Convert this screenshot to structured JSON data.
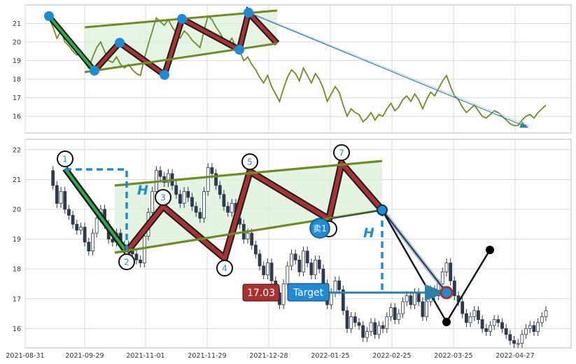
{
  "chart_data": [
    {
      "panel": "top",
      "type": "line",
      "title": "",
      "xlabel": "",
      "ylabel": "",
      "ylim": [
        15.1,
        22.0
      ],
      "yticks": [
        16,
        17,
        18,
        19,
        20,
        21
      ],
      "grid": true,
      "series": [
        {
          "color": "#6b8e23",
          "x": [
            0,
            2,
            4,
            6,
            8,
            10,
            12,
            14,
            16,
            18,
            20,
            22,
            24,
            26,
            28,
            30,
            32,
            34,
            36,
            38,
            40,
            42,
            44,
            46,
            48,
            50,
            52,
            54,
            56,
            58,
            60,
            62,
            64,
            66,
            68,
            70,
            72,
            74,
            76,
            78,
            80,
            82,
            84,
            86,
            88,
            90,
            92,
            94,
            96,
            98,
            100,
            102,
            104,
            106,
            108,
            110,
            112,
            114,
            116,
            118,
            120,
            122,
            124,
            126,
            128,
            130,
            132,
            134,
            136,
            138,
            140,
            142,
            144,
            146,
            148,
            150,
            152,
            154,
            156,
            158,
            160,
            162,
            164,
            166,
            168,
            170,
            172,
            174,
            176,
            178,
            180,
            182,
            184,
            186,
            188,
            190,
            192,
            194,
            196,
            198,
            200,
            202,
            204,
            206,
            208,
            210,
            212,
            214,
            216,
            218,
            220,
            222,
            224,
            226,
            228,
            230,
            232,
            234,
            236,
            238,
            240,
            242,
            244,
            246,
            248,
            250
          ],
          "values": [
            21.3,
            20.8,
            20.2,
            20.6,
            20.0,
            19.8,
            19.5,
            19.3,
            19.4,
            18.9,
            18.6,
            19.2,
            19.7,
            20.0,
            19.5,
            19.0,
            18.9,
            19.2,
            18.8,
            18.6,
            18.8,
            18.5,
            18.3,
            18.2,
            19.1,
            19.9,
            20.6,
            21.3,
            21.1,
            20.9,
            21.2,
            20.8,
            20.5,
            20.2,
            20.6,
            20.4,
            20.1,
            19.9,
            19.7,
            20.6,
            21.4,
            21.2,
            20.8,
            20.5,
            20.1,
            19.9,
            20.2,
            19.7,
            19.5,
            19.0,
            19.2,
            18.8,
            18.5,
            18.1,
            17.8,
            18.2,
            17.6,
            17.2,
            16.8,
            17.5,
            18.1,
            18.5,
            18.3,
            17.9,
            18.6,
            18.2,
            17.8,
            18.3,
            18.0,
            17.5,
            16.8,
            17.2,
            17.6,
            17.3,
            16.6,
            16.0,
            16.4,
            16.2,
            16.1,
            15.7,
            15.9,
            16.2,
            15.8,
            16.1,
            16.0,
            16.4,
            16.7,
            16.3,
            16.5,
            16.9,
            17.1,
            16.8,
            17.2,
            16.9,
            16.4,
            16.9,
            17.3,
            17.1,
            17.5,
            17.9,
            18.2,
            17.6,
            17.1,
            16.9,
            16.5,
            16.2,
            16.4,
            16.6,
            16.3,
            16.0,
            15.9,
            16.1,
            16.3,
            16.2,
            16.0,
            15.8,
            15.6,
            15.5,
            15.5,
            15.8,
            16.0,
            16.1,
            15.9,
            16.2,
            16.4,
            16.6
          ]
        }
      ]
    },
    {
      "panel": "bottom",
      "type": "candlestick",
      "title": "",
      "xlabel": "",
      "ylabel": "",
      "ylim": [
        15.35,
        22.35
      ],
      "yticks": [
        16,
        17,
        18,
        19,
        20,
        21,
        22
      ],
      "xticks": [
        "2021-08-31",
        "2021-09-29",
        "2021-11-01",
        "2021-11-29",
        "2021-12-28",
        "2022-01-25",
        "2022-02-25",
        "2022-03-25",
        "2022-04-27"
      ],
      "grid": true,
      "pattern_points": [
        "1",
        "2",
        "3",
        "4",
        "5",
        "7"
      ],
      "annotations": {
        "height_marker": "H",
        "price_box": "17.03",
        "target_box": "Target",
        "sell_marker": "卖1"
      },
      "colors": {
        "up": "#ffffff",
        "down": "#2d3a4f",
        "trend_green": "#6b8e23",
        "zigzag_red": "#a83232",
        "blue": "#1f8bd4"
      }
    }
  ]
}
